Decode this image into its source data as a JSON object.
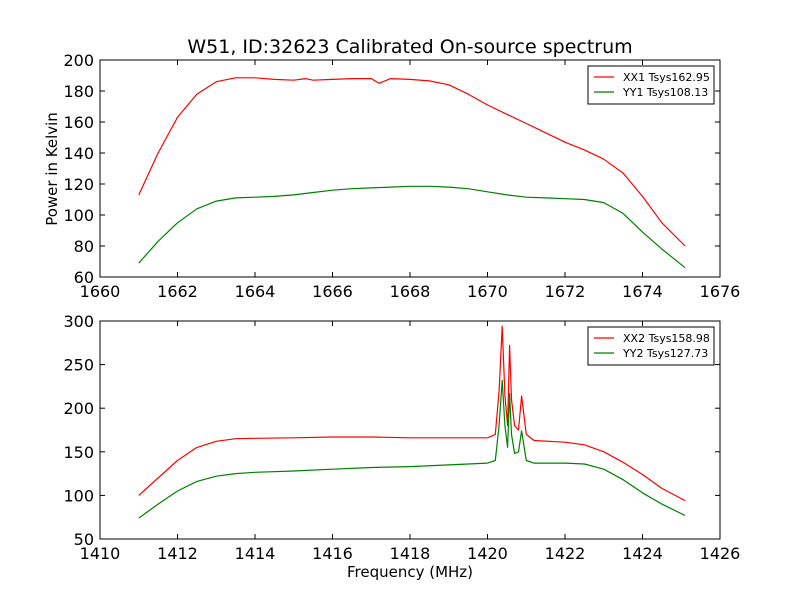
{
  "figure": {
    "title": "W51, ID:32623 Calibrated On-source spectrum",
    "ylabel": "Power in Kelvin",
    "xlabel": "Frequency (MHz)"
  },
  "chart_data": [
    {
      "type": "line",
      "title": "W51, ID:32623 Calibrated On-source spectrum",
      "xlabel": "",
      "ylabel": "Power in Kelvin",
      "xlim": [
        1660,
        1676
      ],
      "ylim": [
        60,
        200
      ],
      "xticks": [
        1660,
        1662,
        1664,
        1666,
        1668,
        1670,
        1672,
        1674,
        1676
      ],
      "yticks": [
        60,
        80,
        100,
        120,
        140,
        160,
        180,
        200
      ],
      "legend_position": "top-right",
      "series": [
        {
          "name": "XX1 Tsys162.95",
          "color": "#ff0000",
          "x": [
            1661.0,
            1661.5,
            1662.0,
            1662.5,
            1663.0,
            1663.5,
            1664.0,
            1664.5,
            1665.0,
            1665.3,
            1665.5,
            1666.0,
            1666.5,
            1667.0,
            1667.2,
            1667.5,
            1668.0,
            1668.5,
            1669.0,
            1669.5,
            1670.0,
            1670.5,
            1671.0,
            1671.5,
            1672.0,
            1672.5,
            1673.0,
            1673.5,
            1674.0,
            1674.5,
            1675.1
          ],
          "y": [
            113,
            140,
            163,
            178,
            186,
            188.5,
            188.5,
            187.5,
            187,
            188,
            187,
            187.5,
            188,
            188,
            185,
            188,
            187.5,
            186.5,
            184,
            178,
            171,
            165,
            159,
            153,
            147,
            142,
            136,
            127,
            112,
            95,
            80
          ]
        },
        {
          "name": "YY1 Tsys108.13",
          "color": "#008000",
          "x": [
            1661.0,
            1661.5,
            1662.0,
            1662.5,
            1663.0,
            1663.5,
            1664.0,
            1664.5,
            1665.0,
            1665.5,
            1666.0,
            1666.5,
            1667.0,
            1667.5,
            1668.0,
            1668.5,
            1669.0,
            1669.5,
            1670.0,
            1670.5,
            1671.0,
            1671.5,
            1672.0,
            1672.5,
            1673.0,
            1673.5,
            1674.0,
            1674.5,
            1675.1
          ],
          "y": [
            69,
            83,
            95,
            104,
            109,
            111,
            111.5,
            112,
            113,
            114.5,
            116,
            117,
            117.5,
            118,
            118.5,
            118.5,
            118,
            117,
            115,
            113,
            111.5,
            111,
            110.5,
            110,
            108,
            101,
            89,
            78,
            66
          ]
        }
      ]
    },
    {
      "type": "line",
      "title": "",
      "xlabel": "Frequency (MHz)",
      "ylabel": "",
      "xlim": [
        1410,
        1426
      ],
      "ylim": [
        50,
        300
      ],
      "xticks": [
        1410,
        1412,
        1414,
        1416,
        1418,
        1420,
        1422,
        1424,
        1426
      ],
      "yticks": [
        50,
        100,
        150,
        200,
        250,
        300
      ],
      "legend_position": "top-right",
      "series": [
        {
          "name": "XX2 Tsys158.98",
          "color": "#ff0000",
          "x": [
            1411.0,
            1411.5,
            1412.0,
            1412.5,
            1413.0,
            1413.5,
            1414.0,
            1415.0,
            1416.0,
            1417.0,
            1418.0,
            1419.0,
            1420.0,
            1420.2,
            1420.3,
            1420.38,
            1420.45,
            1420.52,
            1420.57,
            1420.62,
            1420.7,
            1420.8,
            1420.88,
            1421.0,
            1421.2,
            1422.0,
            1422.5,
            1423.0,
            1423.5,
            1424.0,
            1424.5,
            1425.1
          ],
          "y": [
            100,
            120,
            140,
            155,
            162,
            165,
            165.5,
            166,
            167,
            167,
            166,
            166,
            166,
            170,
            220,
            294,
            215,
            180,
            272,
            210,
            180,
            175,
            214,
            170,
            163,
            161,
            158,
            150,
            138,
            124,
            108,
            94
          ]
        },
        {
          "name": "YY2 Tsys127.73",
          "color": "#008000",
          "x": [
            1411.0,
            1411.5,
            1412.0,
            1412.5,
            1413.0,
            1413.5,
            1414.0,
            1415.0,
            1416.0,
            1417.0,
            1418.0,
            1419.0,
            1420.0,
            1420.2,
            1420.3,
            1420.38,
            1420.45,
            1420.52,
            1420.57,
            1420.62,
            1420.7,
            1420.8,
            1420.88,
            1421.0,
            1421.2,
            1422.0,
            1422.5,
            1423.0,
            1423.5,
            1424.0,
            1424.5,
            1425.1
          ],
          "y": [
            74,
            90,
            105,
            116,
            122,
            125,
            126.5,
            128,
            130,
            132,
            133,
            135,
            137,
            140,
            180,
            232,
            180,
            155,
            217,
            170,
            148,
            150,
            174,
            140,
            137,
            137,
            136,
            130,
            118,
            103,
            90,
            77
          ]
        }
      ]
    }
  ]
}
